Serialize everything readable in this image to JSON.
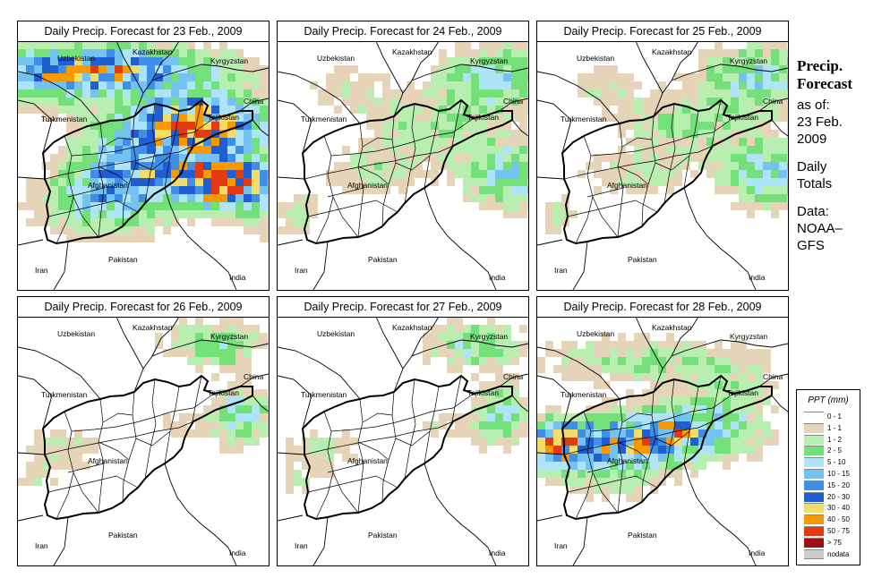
{
  "title_prefix": "Daily Precip. Forecast for",
  "panels": [
    {
      "date": "23 Feb., 2009",
      "title": "Daily Precip. Forecast for  23 Feb., 2009",
      "intensity": "heavy"
    },
    {
      "date": "24 Feb., 2009",
      "title": "Daily Precip. Forecast for  24 Feb., 2009",
      "intensity": "light"
    },
    {
      "date": "25 Feb., 2009",
      "title": "Daily Precip. Forecast for  25 Feb., 2009",
      "intensity": "light"
    },
    {
      "date": "26 Feb., 2009",
      "title": "Daily Precip. Forecast for  26 Feb., 2009",
      "intensity": "minimal"
    },
    {
      "date": "27 Feb., 2009",
      "title": "Daily Precip. Forecast for  27 Feb., 2009",
      "intensity": "minimal"
    },
    {
      "date": "28 Feb., 2009",
      "title": "Daily Precip. Forecast for  28 Feb., 2009",
      "intensity": "moderate"
    }
  ],
  "country_labels": {
    "kazakhstan": "Kazakhstan",
    "uzbekistan": "Uzbekistan",
    "kyrgyzstan": "Kyrgyzstan",
    "turkmenistan": "Turkmenistan",
    "tajikistan": "Tajikistan",
    "china": "China",
    "afghanistan": "Afghanistan",
    "pakistan": "Pakistan",
    "iran": "Iran",
    "india": "India"
  },
  "sidebar": {
    "heading_line1": "Precip.",
    "heading_line2": "Forecast",
    "asof_line1": "as of:",
    "asof_line2": "23 Feb.",
    "asof_line3": "2009",
    "daily_line1": "Daily",
    "daily_line2": "Totals",
    "data_line1": "Data:",
    "data_line2": "NOAA–",
    "data_line3": "GFS"
  },
  "legend": {
    "title": "PPT (mm)",
    "items": [
      {
        "label": "0 - 1",
        "color": "#ffffff"
      },
      {
        "label": "1 - 1",
        "color": "#e6d4b8"
      },
      {
        "label": "1 - 2",
        "color": "#b8eeb0"
      },
      {
        "label": "2 - 5",
        "color": "#73e07a"
      },
      {
        "label": "5 - 10",
        "color": "#aee4f8"
      },
      {
        "label": "10 - 15",
        "color": "#74c2f2"
      },
      {
        "label": "15 - 20",
        "color": "#3f8fe6"
      },
      {
        "label": "20 - 30",
        "color": "#1f5fd2"
      },
      {
        "label": "30 - 40",
        "color": "#f2dc6a"
      },
      {
        "label": "40 - 50",
        "color": "#f59a00"
      },
      {
        "label": "50 - 75",
        "color": "#e43a10"
      },
      {
        "label": "> 75",
        "color": "#9e1010"
      },
      {
        "label": "nodata",
        "color": "#cccccc"
      }
    ]
  }
}
